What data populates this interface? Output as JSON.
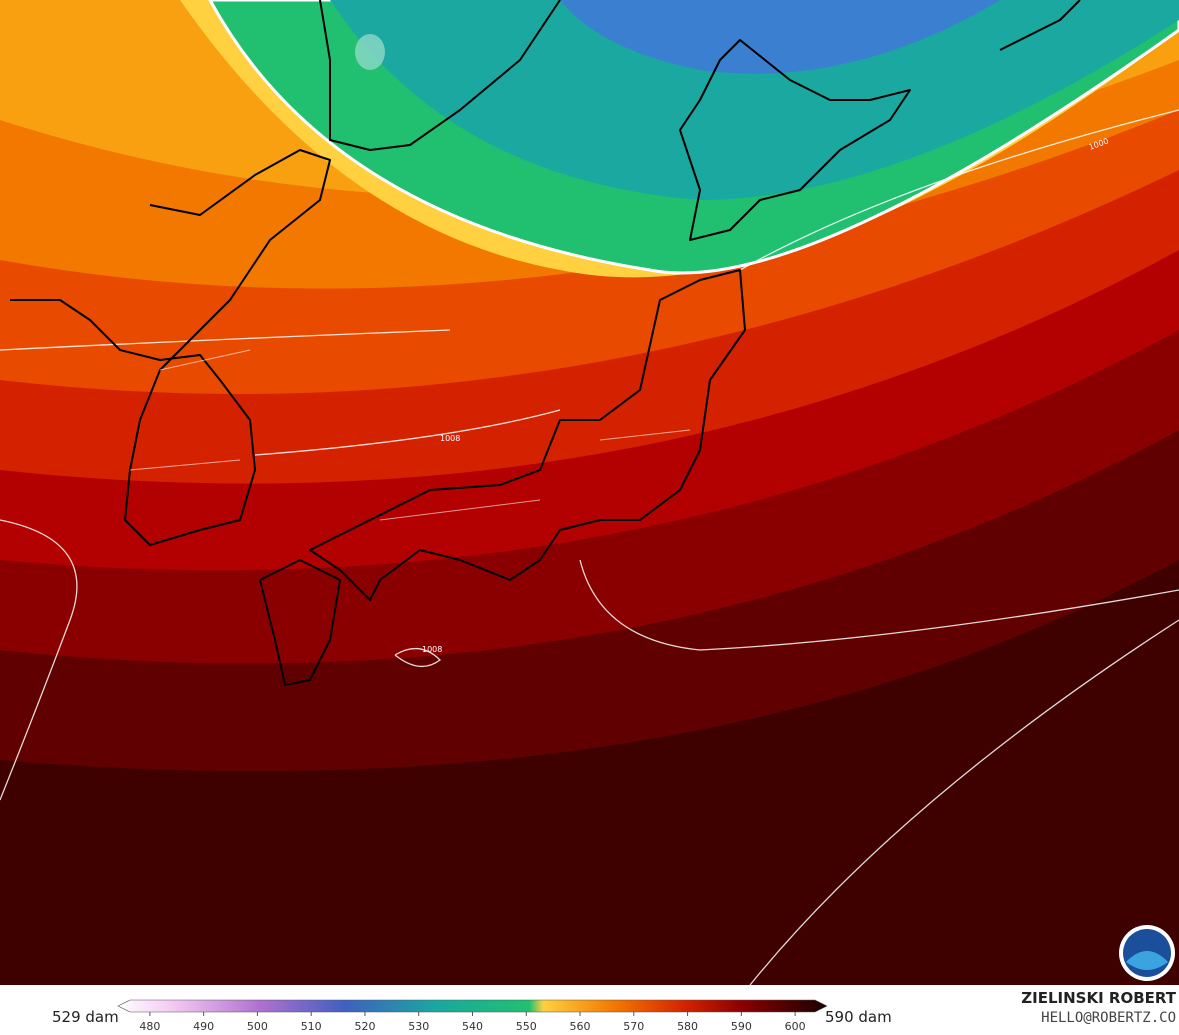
{
  "map": {
    "contour_labels": [
      "1008",
      "1008",
      "1000"
    ]
  },
  "colorbar": {
    "min_label": "529 dam",
    "max_label": "590 dam",
    "range": [
      475,
      605
    ],
    "ticks": [
      480,
      490,
      500,
      510,
      520,
      530,
      540,
      550,
      560,
      570,
      580,
      590,
      600
    ]
  },
  "credit": {
    "name": "ZIELINSKI ROBERT",
    "contact": "HELLO@ROBERTZ.CO"
  }
}
